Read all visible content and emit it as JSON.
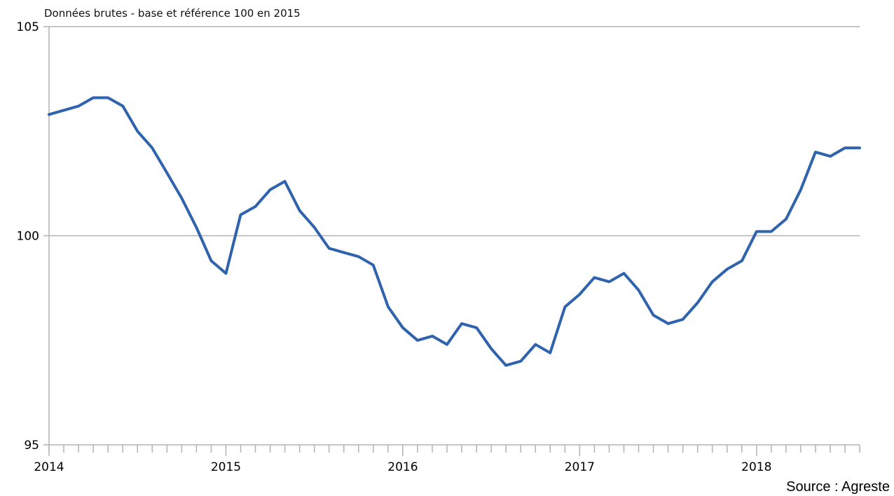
{
  "chart_data": {
    "type": "line",
    "subtitle": "Données brutes - base et référence 100 en 2015",
    "source": "Source : Agreste",
    "xlim": [
      2014,
      2018.583
    ],
    "ylim": [
      95,
      105
    ],
    "yticks": [
      95,
      100,
      105
    ],
    "xtick_labels": [
      "2014",
      "2015",
      "2016",
      "2017",
      "2018"
    ],
    "grid": true,
    "color": "#2f63ad",
    "series": [
      {
        "x": [
          2014.0,
          2014.083,
          2014.167,
          2014.25,
          2014.333,
          2014.417,
          2014.5,
          2014.583,
          2014.667,
          2014.75,
          2014.833,
          2014.917,
          2015.0,
          2015.083,
          2015.167,
          2015.25,
          2015.333,
          2015.417,
          2015.5,
          2015.583,
          2015.667,
          2015.75,
          2015.833,
          2015.917,
          2016.0,
          2016.083,
          2016.167,
          2016.25,
          2016.333,
          2016.417,
          2016.5,
          2016.583,
          2016.667,
          2016.75,
          2016.833,
          2016.917,
          2017.0,
          2017.083,
          2017.167,
          2017.25,
          2017.333,
          2017.417,
          2017.5,
          2017.583,
          2017.667,
          2017.75,
          2017.833,
          2017.917,
          2018.0,
          2018.083,
          2018.167,
          2018.25,
          2018.333,
          2018.417,
          2018.5,
          2018.583
        ],
        "values": [
          102.9,
          103.0,
          103.1,
          103.3,
          103.3,
          103.1,
          102.5,
          102.1,
          101.5,
          100.9,
          100.2,
          99.4,
          99.1,
          100.5,
          100.7,
          101.1,
          101.3,
          100.6,
          100.2,
          99.7,
          99.6,
          99.5,
          99.3,
          98.3,
          97.8,
          97.5,
          97.6,
          97.4,
          97.9,
          97.8,
          97.3,
          96.9,
          97.0,
          97.4,
          97.2,
          98.3,
          98.6,
          99.0,
          98.9,
          99.1,
          98.7,
          98.1,
          97.9,
          98.0,
          98.4,
          98.9,
          99.2,
          99.4,
          100.1,
          100.1,
          100.4,
          101.1,
          102.0,
          101.9,
          102.1,
          102.1
        ]
      }
    ]
  }
}
